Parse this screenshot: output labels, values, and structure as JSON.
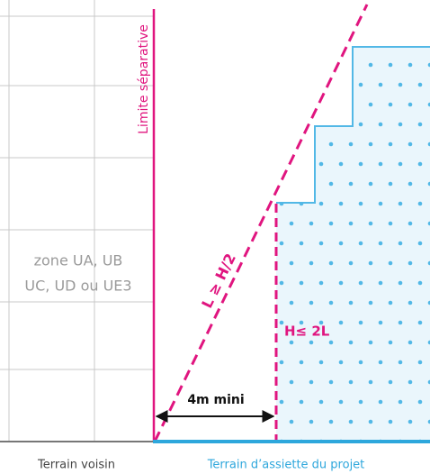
{
  "limit_label": "Limite séparative",
  "slope_label": "L ≥ H/2",
  "height_label": "H≤ 2L",
  "distance_label": "4m mini",
  "zone_label": [
    "zone UA, UB",
    "UC, UD ou UE3"
  ],
  "ground_labels": {
    "left": "Terrain voisin",
    "right": "Terrain d’assiette du projet"
  }
}
